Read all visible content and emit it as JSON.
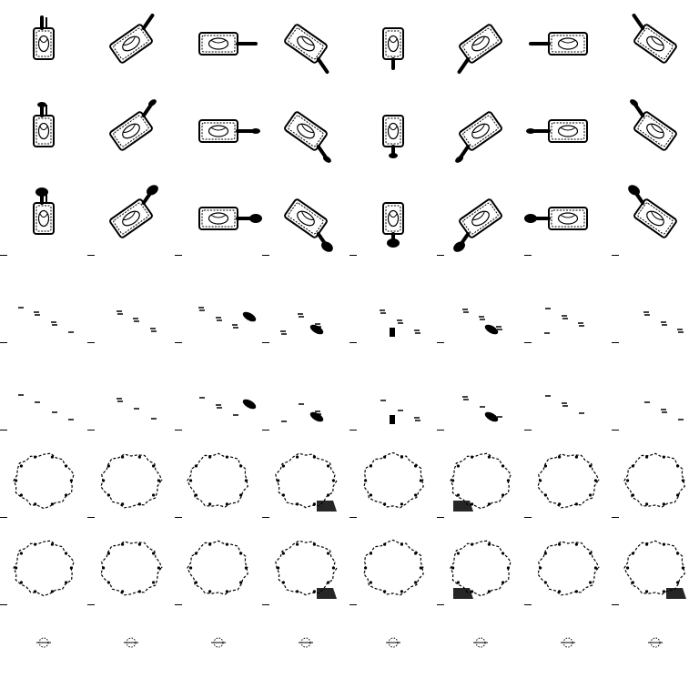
{
  "sprite_sheet": {
    "name": "griddle-spatula-cooking-animation",
    "columns": 8,
    "rows": 8,
    "ink_color": "#000000",
    "background_color": "#ffffff",
    "directions": [
      "south",
      "south-east",
      "east",
      "north-east",
      "north",
      "north-west",
      "west",
      "south-west"
    ],
    "row_phases": [
      "idle",
      "lift",
      "flip",
      "steam-1",
      "steam-2",
      "smoke-1",
      "smoke-2",
      "fade"
    ]
  }
}
